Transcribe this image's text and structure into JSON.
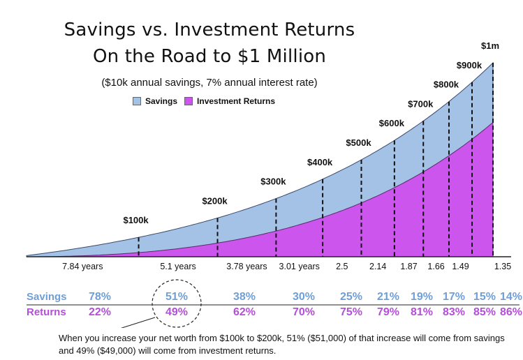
{
  "title_line1": "Savings vs. Investment Returns",
  "title_line2": "On the Road to $1 Million",
  "subtitle": "($10k annual savings, 7% annual interest rate)",
  "legend": {
    "savings": "Savings",
    "returns": "Investment Returns"
  },
  "colors": {
    "savings": "#a4c2e6",
    "returns": "#cc55ee",
    "savings_text": "#6f9fd6",
    "returns_text": "#b34fd8"
  },
  "chart_data": {
    "type": "area",
    "series": [
      {
        "name": "Savings"
      },
      {
        "name": "Investment Returns"
      }
    ],
    "milestones": [
      {
        "label": "$100k",
        "years": 7.84,
        "savings_pct": "78%",
        "returns_pct": "22%"
      },
      {
        "label": "$200k",
        "years": 5.1,
        "savings_pct": "51%",
        "returns_pct": "49%"
      },
      {
        "label": "$300k",
        "years": 3.78,
        "savings_pct": "38%",
        "returns_pct": "62%"
      },
      {
        "label": "$400k",
        "years": 3.01,
        "savings_pct": "30%",
        "returns_pct": "70%"
      },
      {
        "label": "$500k",
        "years": 2.5,
        "savings_pct": "25%",
        "returns_pct": "75%"
      },
      {
        "label": "$600k",
        "years": 2.14,
        "savings_pct": "21%",
        "returns_pct": "79%"
      },
      {
        "label": "$700k",
        "years": 1.87,
        "savings_pct": "19%",
        "returns_pct": "81%"
      },
      {
        "label": "$800k",
        "years": 1.66,
        "savings_pct": "17%",
        "returns_pct": "83%"
      },
      {
        "label": "$900k",
        "years": 1.49,
        "savings_pct": "15%",
        "returns_pct": "85%"
      },
      {
        "label": "$1m",
        "years": 1.35,
        "savings_pct": "14%",
        "returns_pct": "86%"
      }
    ],
    "interval_labels": [
      "7.84 years",
      "5.1 years",
      "3.78 years",
      "3.01 years",
      "2.5",
      "2.14",
      "1.87",
      "1.66",
      "1.49",
      "1.35"
    ],
    "row_labels": {
      "savings": "Savings",
      "returns": "Returns"
    },
    "annual_savings": 10000,
    "interest_rate": 0.07
  },
  "footnote": "When you increase your net worth from $100k to $200k, 51% ($51,000) of that increase will come from savings and 49% ($49,000) will come from investment returns."
}
